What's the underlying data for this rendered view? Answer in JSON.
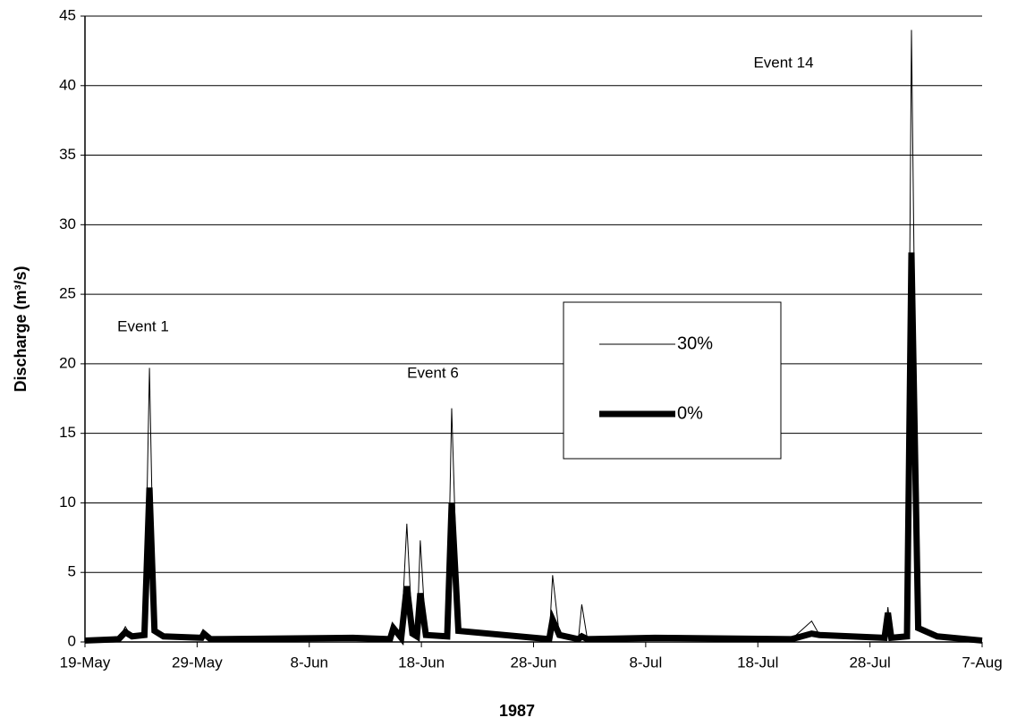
{
  "chart_data": {
    "type": "line",
    "y_label": "Discharge (m³/s)",
    "x_label": "1987",
    "annotations": [
      "Event 1",
      "Event 6",
      "Event 14"
    ],
    "x": [
      0,
      3,
      3.6,
      4.2,
      5.3,
      5.75,
      6.2,
      7,
      10.4,
      10.6,
      11.2,
      23.9,
      27.2,
      27.5,
      28.2,
      28.7,
      29.2,
      29.6,
      29.9,
      30.4,
      32.3,
      32.7,
      33.3,
      41.4,
      41.7,
      42.3,
      44.0,
      44.3,
      44.8,
      50.8,
      63,
      64.8,
      65.5,
      71.3,
      71.6,
      71.9,
      73.3,
      73.7,
      74.3,
      76,
      80
    ],
    "series": [
      {
        "name": "30%",
        "color": "#000000",
        "width": 1,
        "values": [
          0.1,
          0.2,
          1.1,
          0.3,
          0.5,
          19.7,
          0.8,
          0.4,
          0.3,
          0.6,
          0.2,
          0.3,
          0.2,
          1.2,
          0.3,
          8.5,
          0.6,
          0.4,
          7.3,
          0.5,
          0.4,
          16.8,
          0.8,
          0.2,
          4.8,
          0.5,
          0.2,
          2.7,
          0.2,
          0.4,
          0.2,
          1.5,
          0.5,
          0.3,
          2.5,
          0.3,
          0.4,
          44,
          1.0,
          0.4,
          0.1
        ]
      },
      {
        "name": "0%",
        "color": "#000000",
        "width": 7,
        "values": [
          0.1,
          0.2,
          0.7,
          0.4,
          0.5,
          11.1,
          0.8,
          0.4,
          0.3,
          0.6,
          0.2,
          0.3,
          0.2,
          1.0,
          0.3,
          4.0,
          0.6,
          0.4,
          3.5,
          0.5,
          0.4,
          10.0,
          0.8,
          0.2,
          1.6,
          0.5,
          0.2,
          0.4,
          0.2,
          0.3,
          0.2,
          0.6,
          0.5,
          0.3,
          2.1,
          0.3,
          0.4,
          28,
          1.0,
          0.4,
          0.1
        ]
      }
    ],
    "xlim": [
      0,
      80
    ],
    "xticks": [
      {
        "value": 0,
        "label": "19-May"
      },
      {
        "value": 10,
        "label": "29-May"
      },
      {
        "value": 20,
        "label": "8-Jun"
      },
      {
        "value": 30,
        "label": "18-Jun"
      },
      {
        "value": 40,
        "label": "28-Jun"
      },
      {
        "value": 50,
        "label": "8-Jul"
      },
      {
        "value": 60,
        "label": "18-Jul"
      },
      {
        "value": 70,
        "label": "28-Jul"
      },
      {
        "value": 80,
        "label": "7-Aug"
      }
    ],
    "ylim": [
      0,
      45
    ],
    "yticks": [
      0,
      5,
      10,
      15,
      20,
      25,
      30,
      35,
      40,
      45
    ],
    "grid": true
  }
}
